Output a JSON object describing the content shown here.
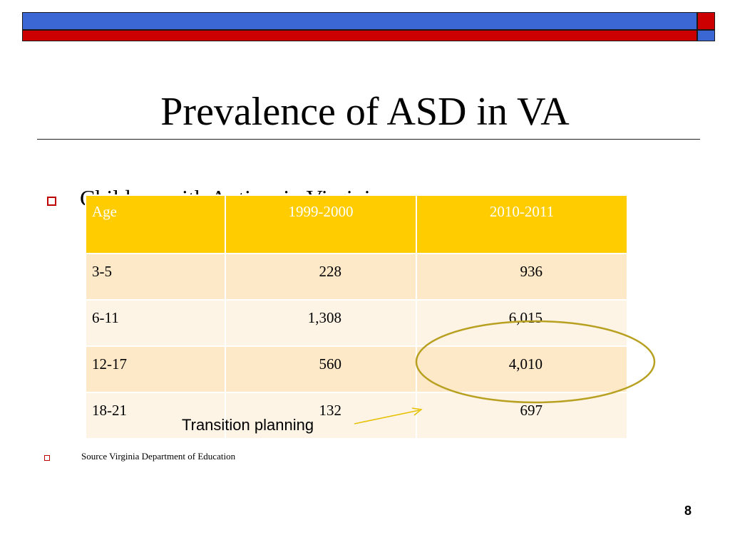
{
  "slide": {
    "title": "Prevalence of ASD in VA",
    "bullet_1": "Children with Autism in Virginia",
    "table": {
      "headers": [
        "Age",
        "1999-2000",
        "2010-2011"
      ],
      "rows": [
        [
          "3-5",
          "228",
          "936"
        ],
        [
          "6-11",
          "1,308",
          "6,015"
        ],
        [
          "12-17",
          "560",
          "4,010"
        ],
        [
          "18-21",
          "132",
          "697"
        ]
      ]
    },
    "annotation": "Transition planning",
    "source": "Source Virginia Department of Education",
    "page_number": "8"
  },
  "colors": {
    "header_blue": "#3a67d4",
    "header_red": "#cc0000",
    "table_header": "#ffcc00",
    "row_odd": "#fde8c8",
    "row_even": "#fef4e6",
    "bullet_red": "#c00000",
    "highlight_ellipse": "#b8a020"
  }
}
